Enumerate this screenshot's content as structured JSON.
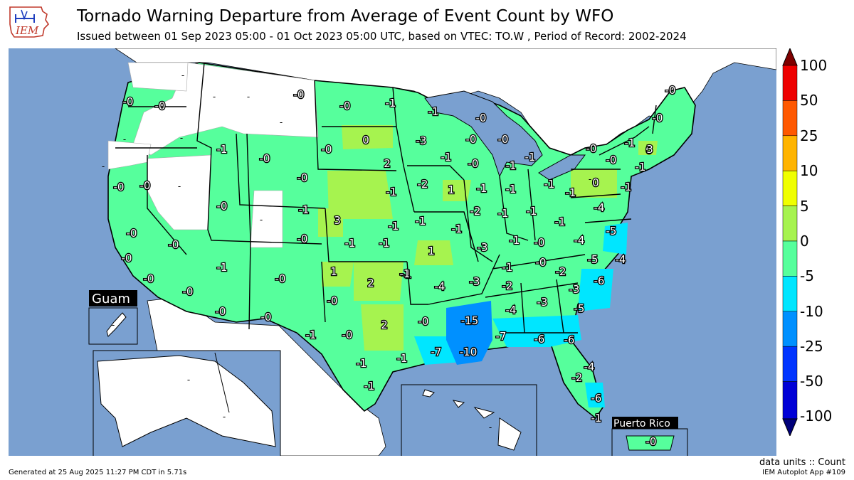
{
  "header": {
    "logo_text": "IEM",
    "title": "Tornado Warning Departure from Average of Event Count by WFO",
    "subtitle": "Issued between 01 Sep 2023 05:00 - 01 Oct 2023 05:00 UTC, based on VTEC: TO.W  , Period of Record: 2002-2024"
  },
  "footer": {
    "generated": "Generated at 25 Aug 2025 11:27 PM CDT in 5.71s",
    "units": "data units :: Count",
    "app": "IEM Autoplot App #109"
  },
  "insets": {
    "guam": "Guam",
    "puerto_rico": "Puerto Rico"
  },
  "colors": {
    "ocean": "#7aa0d0",
    "land_none": "#ffffff",
    "border": "#000000",
    "bins": [
      "#00007a",
      "#0000d6",
      "#0034ff",
      "#0090ff",
      "#00e6ff",
      "#56ff9c",
      "#a6f34f",
      "#f0ff00",
      "#ffb400",
      "#ff5800",
      "#ee0000",
      "#7f0000"
    ]
  },
  "legend": {
    "ticks": [
      "100",
      "50",
      "25",
      "10",
      "5",
      "0",
      "-5",
      "-10",
      "-25",
      "-50",
      "-100"
    ],
    "bin_colors_top_to_bottom": [
      "#ee0000",
      "#ff5800",
      "#ffb400",
      "#f0ff00",
      "#a6f34f",
      "#56ff9c",
      "#00e6ff",
      "#0090ff",
      "#0034ff",
      "#0000d6"
    ],
    "arrow_top": "#7f0000",
    "arrow_bottom": "#00007a"
  },
  "wfo_values": [
    {
      "label": "-0",
      "value": -0.2
    },
    {
      "label": "-0",
      "value": -0.3
    },
    {
      "label": "-1",
      "value": -1
    },
    {
      "label": "-0",
      "value": -0.4
    },
    {
      "label": "-0",
      "value": -0.2
    },
    {
      "label": "-0",
      "value": -0.3
    },
    {
      "label": "-1",
      "value": -1
    },
    {
      "label": "-0",
      "value": -0.2
    },
    {
      "label": "-0",
      "value": -0.3
    },
    {
      "label": "0",
      "value": 0.4
    },
    {
      "label": "-0",
      "value": -0.1
    },
    {
      "label": "-0",
      "value": -0.2
    },
    {
      "label": "-1",
      "value": -1
    },
    {
      "label": "-1",
      "value": -1
    },
    {
      "label": "-3",
      "value": -3
    },
    {
      "label": "-1",
      "value": -1
    },
    {
      "label": "-0",
      "value": -0.4
    },
    {
      "label": "-0",
      "value": -0.2
    },
    {
      "label": "-0",
      "value": -0.4
    },
    {
      "label": "-0",
      "value": -0.3
    },
    {
      "label": "0",
      "value": 0.3
    },
    {
      "label": "2",
      "value": 2
    },
    {
      "label": "-1",
      "value": -1
    },
    {
      "label": "-0",
      "value": -0.3
    },
    {
      "label": "-1",
      "value": -1
    },
    {
      "label": "-2",
      "value": -2
    },
    {
      "label": "1",
      "value": 1
    },
    {
      "label": "-1",
      "value": -1
    },
    {
      "label": "-1",
      "value": -1
    },
    {
      "label": "-1",
      "value": -1
    },
    {
      "label": "-1",
      "value": -1
    },
    {
      "label": "-1",
      "value": -1
    },
    {
      "label": "-1",
      "value": -1
    },
    {
      "label": "-0",
      "value": -0.2
    },
    {
      "label": "-0",
      "value": -0.3
    },
    {
      "label": "3",
      "value": 3
    },
    {
      "label": "-0",
      "value": -0.3
    },
    {
      "label": "0",
      "value": 0.4
    },
    {
      "label": "-1",
      "value": -1
    },
    {
      "label": "-0",
      "value": -0.4
    },
    {
      "label": "-0",
      "value": -0.3
    },
    {
      "label": "-0",
      "value": -0.2
    },
    {
      "label": "-1",
      "value": -1
    },
    {
      "label": "-0",
      "value": -0.3
    },
    {
      "label": "-1",
      "value": -1
    },
    {
      "label": "3",
      "value": 3
    },
    {
      "label": "-1",
      "value": -1
    },
    {
      "label": "-1",
      "value": -1
    },
    {
      "label": "-1",
      "value": -1
    },
    {
      "label": "-1",
      "value": -1
    },
    {
      "label": "-2",
      "value": -2
    },
    {
      "label": "-1",
      "value": -1
    },
    {
      "label": "-1",
      "value": -1
    },
    {
      "label": "-1",
      "value": -1
    },
    {
      "label": "-4",
      "value": -4
    },
    {
      "label": "-5",
      "value": -5
    },
    {
      "label": "-0",
      "value": -0.3
    },
    {
      "label": "-0",
      "value": -0.4
    },
    {
      "label": "1",
      "value": 1
    },
    {
      "label": "-3",
      "value": -3
    },
    {
      "label": "-1",
      "value": -1
    },
    {
      "label": "-0",
      "value": -0.3
    },
    {
      "label": "-4",
      "value": -4
    },
    {
      "label": "-5",
      "value": -5
    },
    {
      "label": "-4",
      "value": -4
    },
    {
      "label": "-0",
      "value": -0.3
    },
    {
      "label": "-0",
      "value": -0.2
    },
    {
      "label": "-1",
      "value": -1
    },
    {
      "label": "1",
      "value": 1
    },
    {
      "label": "2",
      "value": 2
    },
    {
      "label": "-1",
      "value": -1
    },
    {
      "label": "-4",
      "value": -4
    },
    {
      "label": "-3",
      "value": -3
    },
    {
      "label": "-1",
      "value": -1
    },
    {
      "label": "-0",
      "value": -0.3
    },
    {
      "label": "-2",
      "value": -2
    },
    {
      "label": "-3",
      "value": -3
    },
    {
      "label": "-6",
      "value": -6
    },
    {
      "label": "-0",
      "value": -0.3
    },
    {
      "label": "-0",
      "value": -0.2
    },
    {
      "label": "-0",
      "value": -0.3
    },
    {
      "label": "-0",
      "value": -0.2
    },
    {
      "label": "2",
      "value": 2
    },
    {
      "label": "-15",
      "value": -15
    },
    {
      "label": "-2",
      "value": -2
    },
    {
      "label": "-4",
      "value": -4
    },
    {
      "label": "-3",
      "value": -3
    },
    {
      "label": "-5",
      "value": -5
    },
    {
      "label": "-1",
      "value": -1
    },
    {
      "label": "-0",
      "value": -0.3
    },
    {
      "label": "-1",
      "value": -1
    },
    {
      "label": "-7",
      "value": -7
    },
    {
      "label": "-10",
      "value": -10
    },
    {
      "label": "-7",
      "value": -7
    },
    {
      "label": "-6",
      "value": -6
    },
    {
      "label": "-6",
      "value": -6
    },
    {
      "label": "-1",
      "value": -1
    },
    {
      "label": "-1",
      "value": -1
    },
    {
      "label": "-4",
      "value": -4
    },
    {
      "label": "-2",
      "value": -2
    },
    {
      "label": "-6",
      "value": -6
    },
    {
      "label": "-1",
      "value": -1
    },
    {
      "label": "-1",
      "value": -1
    },
    {
      "label": "-0",
      "value": -0.3
    }
  ],
  "no_value_markers": [
    "-",
    "-",
    "-",
    "-",
    "-",
    "-",
    "-",
    "-",
    "-",
    "-",
    "-",
    "-",
    "-",
    "-"
  ]
}
